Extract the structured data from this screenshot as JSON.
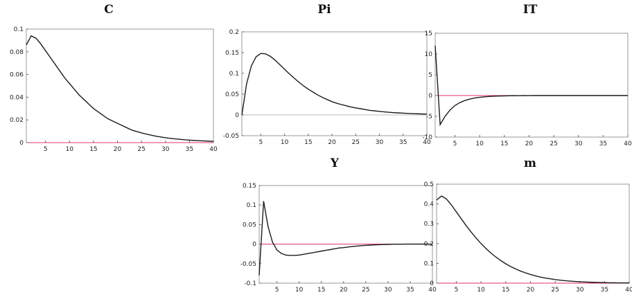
{
  "chart_data": [
    {
      "type": "line",
      "title": "C",
      "x": [
        1,
        2,
        3,
        4,
        5,
        6,
        7,
        8,
        9,
        10,
        11,
        12,
        13,
        14,
        15,
        16,
        17,
        18,
        19,
        20,
        21,
        22,
        23,
        24,
        25,
        26,
        27,
        28,
        29,
        30,
        31,
        32,
        33,
        34,
        35,
        36,
        37,
        38,
        39,
        40
      ],
      "values": [
        0.086,
        0.094,
        0.092,
        0.087,
        0.081,
        0.075,
        0.069,
        0.063,
        0.057,
        0.052,
        0.047,
        0.042,
        0.038,
        0.034,
        0.03,
        0.027,
        0.024,
        0.021,
        0.019,
        0.017,
        0.015,
        0.013,
        0.011,
        0.0098,
        0.0086,
        0.0075,
        0.0066,
        0.0057,
        0.005,
        0.0043,
        0.0038,
        0.0033,
        0.0029,
        0.0025,
        0.0022,
        0.0019,
        0.0017,
        0.0015,
        0.0013,
        0.0011
      ],
      "xlim": [
        1,
        40
      ],
      "ylim": [
        0,
        0.1
      ],
      "xticks": [
        5,
        10,
        15,
        20,
        25,
        30,
        35,
        40
      ],
      "xtick_labels": [
        "5",
        "10",
        "15",
        "20",
        "25",
        "30",
        "35",
        "40"
      ],
      "yticks": [
        0,
        0.02,
        0.04,
        0.06,
        0.08,
        0.1
      ],
      "ytick_labels": [
        "0",
        "0.02",
        "0.04",
        "0.06",
        "0.08",
        "0.1"
      ],
      "line_color": "#1a1a1a",
      "zero_line_color": "#e0306a"
    },
    {
      "type": "line",
      "title": "Pi",
      "x": [
        1,
        2,
        3,
        4,
        5,
        6,
        7,
        8,
        9,
        10,
        11,
        12,
        13,
        14,
        15,
        16,
        17,
        18,
        19,
        20,
        21,
        22,
        23,
        24,
        25,
        26,
        27,
        28,
        29,
        30,
        31,
        32,
        33,
        34,
        35,
        36,
        37,
        38,
        39,
        40
      ],
      "values": [
        0.0,
        0.075,
        0.118,
        0.14,
        0.148,
        0.147,
        0.141,
        0.132,
        0.121,
        0.11,
        0.099,
        0.089,
        0.079,
        0.07,
        0.062,
        0.055,
        0.048,
        0.042,
        0.037,
        0.032,
        0.028,
        0.025,
        0.022,
        0.019,
        0.017,
        0.015,
        0.013,
        0.011,
        0.0098,
        0.0085,
        0.0074,
        0.0064,
        0.0055,
        0.0048,
        0.0042,
        0.0036,
        0.0031,
        0.0027,
        0.0023,
        0.002
      ],
      "xlim": [
        1,
        40
      ],
      "ylim": [
        -0.05,
        0.2
      ],
      "xticks": [
        5,
        10,
        15,
        20,
        25,
        30,
        35,
        40
      ],
      "xtick_labels": [
        "5",
        "10",
        "15",
        "20",
        "25",
        "30",
        "35",
        "40"
      ],
      "yticks": [
        -0.05,
        0,
        0.05,
        0.1,
        0.15,
        0.2
      ],
      "ytick_labels": [
        "-0.05",
        "0",
        "0.05",
        "0.1",
        "0.15",
        "0.2"
      ],
      "line_color": "#1a1a1a",
      "zero_line_color": "#bbbbbb"
    },
    {
      "type": "line",
      "title": "IT",
      "x": [
        1,
        2,
        3,
        4,
        5,
        6,
        7,
        8,
        9,
        10,
        11,
        12,
        13,
        14,
        15,
        16,
        17,
        18,
        19,
        20,
        21,
        22,
        23,
        24,
        25,
        26,
        27,
        28,
        29,
        30,
        31,
        32,
        33,
        34,
        35,
        36,
        37,
        38,
        39,
        40
      ],
      "values": [
        12,
        -7,
        -5,
        -3.5,
        -2.4,
        -1.7,
        -1.2,
        -0.85,
        -0.6,
        -0.42,
        -0.3,
        -0.22,
        -0.16,
        -0.12,
        -0.09,
        -0.06,
        -0.04,
        -0.03,
        -0.02,
        -0.01,
        0,
        0,
        0,
        0,
        0,
        0,
        0,
        0,
        0,
        0,
        0,
        0,
        0,
        0,
        0,
        0,
        0,
        0,
        0,
        0
      ],
      "xlim": [
        1,
        40
      ],
      "ylim": [
        -10,
        15
      ],
      "xticks": [
        5,
        10,
        15,
        20,
        25,
        30,
        35,
        40
      ],
      "xtick_labels": [
        "5",
        "10",
        "15",
        "20",
        "25",
        "30",
        "35",
        "40"
      ],
      "yticks": [
        -10,
        -5,
        0,
        5,
        10,
        15
      ],
      "ytick_labels": [
        "-10",
        "-5",
        "0",
        "5",
        "10",
        "15"
      ],
      "line_color": "#1a1a1a",
      "zero_line_color": "#e0306a"
    },
    {
      "type": "line",
      "title": "Y",
      "x": [
        1,
        2,
        3,
        4,
        5,
        6,
        7,
        8,
        9,
        10,
        11,
        12,
        13,
        14,
        15,
        16,
        17,
        18,
        19,
        20,
        21,
        22,
        23,
        24,
        25,
        26,
        27,
        28,
        29,
        30,
        31,
        32,
        33,
        34,
        35,
        36,
        37,
        38,
        39,
        40
      ],
      "values": [
        -0.08,
        0.11,
        0.045,
        0.005,
        -0.015,
        -0.024,
        -0.028,
        -0.029,
        -0.029,
        -0.028,
        -0.026,
        -0.024,
        -0.022,
        -0.02,
        -0.018,
        -0.016,
        -0.014,
        -0.012,
        -0.01,
        -0.009,
        -0.0075,
        -0.0062,
        -0.005,
        -0.004,
        -0.0032,
        -0.0025,
        -0.0019,
        -0.0014,
        -0.001,
        -0.0007,
        -0.0004,
        -0.0002,
        -0.0001,
        0,
        0,
        0,
        0,
        0,
        0,
        0
      ],
      "xlim": [
        1,
        40
      ],
      "ylim": [
        -0.1,
        0.15
      ],
      "xticks": [
        5,
        10,
        15,
        20,
        25,
        30,
        35,
        40
      ],
      "xtick_labels": [
        "5",
        "10",
        "15",
        "20",
        "25",
        "30",
        "35",
        "40"
      ],
      "yticks": [
        -0.1,
        -0.05,
        0,
        0.05,
        0.1,
        0.15
      ],
      "ytick_labels": [
        "-0.1",
        "-0.05",
        "0",
        "0.05",
        "0.1",
        "0.15"
      ],
      "line_color": "#1a1a1a",
      "zero_line_color": "#e0306a"
    },
    {
      "type": "line",
      "title": "m",
      "x": [
        1,
        2,
        3,
        4,
        5,
        6,
        7,
        8,
        9,
        10,
        11,
        12,
        13,
        14,
        15,
        16,
        17,
        18,
        19,
        20,
        21,
        22,
        23,
        24,
        25,
        26,
        27,
        28,
        29,
        30,
        31,
        32,
        33,
        34,
        35,
        36,
        37,
        38,
        39,
        40
      ],
      "values": [
        0.42,
        0.44,
        0.425,
        0.395,
        0.36,
        0.325,
        0.29,
        0.258,
        0.228,
        0.2,
        0.175,
        0.152,
        0.132,
        0.114,
        0.098,
        0.084,
        0.072,
        0.061,
        0.052,
        0.044,
        0.037,
        0.031,
        0.026,
        0.022,
        0.018,
        0.015,
        0.0125,
        0.0104,
        0.0086,
        0.0071,
        0.0058,
        0.0048,
        0.0039,
        0.0032,
        0.0026,
        0.0021,
        0.0017,
        0.0014,
        0.0011,
        0.0009
      ],
      "xlim": [
        1,
        40
      ],
      "ylim": [
        0,
        0.5
      ],
      "xticks": [
        5,
        10,
        15,
        20,
        25,
        30,
        35,
        40
      ],
      "xtick_labels": [
        "5",
        "10",
        "15",
        "20",
        "25",
        "30",
        "35",
        "40"
      ],
      "yticks": [
        0,
        0.1,
        0.2,
        0.3,
        0.4,
        0.5
      ],
      "ytick_labels": [
        "0",
        "0.1",
        "0.2",
        "0.3",
        "0.4",
        "0.5"
      ],
      "line_color": "#1a1a1a",
      "zero_line_color": "#e0306a"
    }
  ]
}
